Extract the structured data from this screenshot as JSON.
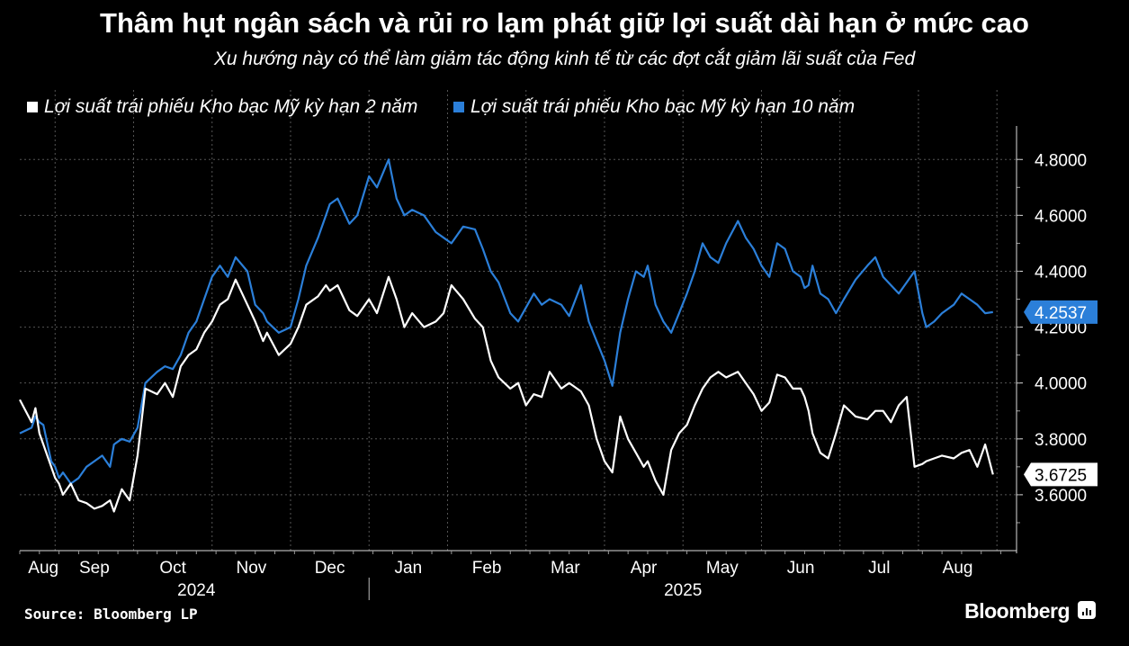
{
  "title": "Thâm hụt ngân sách và rủi ro lạm phát giữ lợi suất dài hạn ở mức cao",
  "subtitle": "Xu hướng này có thể làm giảm tác động kinh tế từ các đợt cắt giảm lãi suất của Fed",
  "source": "Source: Bloomberg LP",
  "brand": "Bloomberg",
  "colors": {
    "background": "#000000",
    "series_2y": "#ffffff",
    "series_10y": "#2b7fd9",
    "gridline": "#555555"
  },
  "chart_data": {
    "type": "line",
    "title": "Thâm hụt ngân sách và rủi ro lạm phát giữ lợi suất dài hạn ở mức cao",
    "ylim": [
      3.4,
      4.92
    ],
    "yticks": [
      3.6,
      3.8,
      4.0,
      4.2,
      4.4,
      4.6,
      4.8
    ],
    "ytick_labels": [
      "3.6000",
      "3.8000",
      "4.0000",
      "4.2000",
      "4.4000",
      "4.6000",
      "4.8000"
    ],
    "x_unit": "months since 2024-08-01",
    "xlim": [
      0.55,
      13.25
    ],
    "month_ticks": [
      {
        "label": "Aug",
        "x": 0.85
      },
      {
        "label": "Sep",
        "x": 1.5
      },
      {
        "label": "Oct",
        "x": 2.5
      },
      {
        "label": "Nov",
        "x": 3.5
      },
      {
        "label": "Dec",
        "x": 4.5
      },
      {
        "label": "Jan",
        "x": 5.5
      },
      {
        "label": "Feb",
        "x": 6.5
      },
      {
        "label": "Mar",
        "x": 7.5
      },
      {
        "label": "Apr",
        "x": 8.5
      },
      {
        "label": "May",
        "x": 9.5
      },
      {
        "label": "Jun",
        "x": 10.5
      },
      {
        "label": "Jul",
        "x": 11.5
      },
      {
        "label": "Aug",
        "x": 12.5
      }
    ],
    "year_labels": [
      {
        "label": "2024",
        "x": 2.8
      },
      {
        "label": "2025",
        "x": 9.0
      }
    ],
    "year_divider_x": 5.0,
    "legend": [
      "Lợi suất trái phiếu Kho bạc Mỹ kỳ hạn 2 năm",
      "Lợi suất trái phiếu Kho bạc Mỹ kỳ hạn 10 năm"
    ],
    "series": [
      {
        "name": "Lợi suất trái phiếu Kho bạc Mỹ kỳ hạn 2 năm",
        "last_label": "3.6725",
        "x": [
          0.55,
          0.7,
          0.75,
          0.8,
          0.85,
          0.95,
          1.0,
          1.05,
          1.1,
          1.2,
          1.3,
          1.4,
          1.5,
          1.6,
          1.7,
          1.75,
          1.85,
          1.95,
          2.05,
          2.15,
          2.3,
          2.4,
          2.5,
          2.6,
          2.7,
          2.8,
          2.9,
          3.0,
          3.1,
          3.2,
          3.3,
          3.45,
          3.55,
          3.65,
          3.7,
          3.85,
          4.0,
          4.1,
          4.2,
          4.35,
          4.45,
          4.5,
          4.6,
          4.75,
          4.85,
          5.0,
          5.1,
          5.25,
          5.35,
          5.45,
          5.55,
          5.7,
          5.85,
          5.95,
          6.05,
          6.2,
          6.35,
          6.45,
          6.55,
          6.65,
          6.8,
          6.9,
          7.0,
          7.1,
          7.2,
          7.3,
          7.45,
          7.55,
          7.7,
          7.8,
          7.9,
          8.0,
          8.1,
          8.2,
          8.3,
          8.4,
          8.5,
          8.55,
          8.65,
          8.75,
          8.85,
          8.95,
          9.05,
          9.15,
          9.25,
          9.35,
          9.45,
          9.55,
          9.7,
          9.8,
          9.9,
          10.0,
          10.1,
          10.2,
          10.3,
          10.4,
          10.5,
          10.55,
          10.6,
          10.65,
          10.75,
          10.85,
          10.95,
          11.05,
          11.2,
          11.35,
          11.45,
          11.55,
          11.65,
          11.75,
          11.85,
          11.95,
          12.05,
          12.1,
          12.2,
          12.3,
          12.45,
          12.55,
          12.65,
          12.75,
          12.85,
          12.95
        ],
        "y": [
          3.94,
          3.86,
          3.91,
          3.82,
          3.78,
          3.7,
          3.66,
          3.64,
          3.6,
          3.64,
          3.58,
          3.57,
          3.55,
          3.56,
          3.58,
          3.54,
          3.62,
          3.58,
          3.74,
          3.98,
          3.96,
          4.0,
          3.95,
          4.06,
          4.1,
          4.12,
          4.18,
          4.22,
          4.28,
          4.3,
          4.37,
          4.28,
          4.22,
          4.15,
          4.18,
          4.1,
          4.14,
          4.2,
          4.28,
          4.31,
          4.35,
          4.33,
          4.35,
          4.26,
          4.24,
          4.3,
          4.25,
          4.38,
          4.3,
          4.2,
          4.25,
          4.2,
          4.22,
          4.25,
          4.35,
          4.3,
          4.23,
          4.2,
          4.08,
          4.02,
          3.98,
          4.0,
          3.92,
          3.96,
          3.95,
          4.04,
          3.98,
          4.0,
          3.97,
          3.92,
          3.8,
          3.72,
          3.68,
          3.88,
          3.8,
          3.75,
          3.7,
          3.72,
          3.65,
          3.6,
          3.76,
          3.82,
          3.85,
          3.92,
          3.98,
          4.02,
          4.04,
          4.02,
          4.04,
          4.0,
          3.96,
          3.9,
          3.93,
          4.03,
          4.02,
          3.98,
          3.98,
          3.95,
          3.9,
          3.82,
          3.75,
          3.73,
          3.82,
          3.92,
          3.88,
          3.87,
          3.9,
          3.9,
          3.86,
          3.92,
          3.95,
          3.7,
          3.71,
          3.72,
          3.73,
          3.74,
          3.73,
          3.75,
          3.76,
          3.7,
          3.78,
          3.6725
        ]
      },
      {
        "name": "Lợi suất trái phiếu Kho bạc Mỹ kỳ hạn 10 năm",
        "last_label": "4.2537",
        "x": [
          0.55,
          0.7,
          0.75,
          0.8,
          0.85,
          0.95,
          1.0,
          1.05,
          1.1,
          1.2,
          1.3,
          1.4,
          1.5,
          1.6,
          1.7,
          1.75,
          1.85,
          1.95,
          2.05,
          2.15,
          2.3,
          2.4,
          2.5,
          2.6,
          2.7,
          2.8,
          2.9,
          3.0,
          3.1,
          3.2,
          3.3,
          3.45,
          3.55,
          3.65,
          3.7,
          3.85,
          4.0,
          4.1,
          4.2,
          4.35,
          4.45,
          4.5,
          4.6,
          4.75,
          4.85,
          5.0,
          5.1,
          5.25,
          5.35,
          5.45,
          5.55,
          5.7,
          5.85,
          5.95,
          6.05,
          6.2,
          6.35,
          6.45,
          6.55,
          6.65,
          6.8,
          6.9,
          7.0,
          7.1,
          7.2,
          7.3,
          7.45,
          7.55,
          7.7,
          7.8,
          7.9,
          8.0,
          8.1,
          8.2,
          8.3,
          8.4,
          8.5,
          8.55,
          8.65,
          8.75,
          8.85,
          8.95,
          9.05,
          9.15,
          9.25,
          9.35,
          9.45,
          9.55,
          9.7,
          9.8,
          9.9,
          10.0,
          10.1,
          10.2,
          10.3,
          10.4,
          10.5,
          10.55,
          10.6,
          10.65,
          10.75,
          10.85,
          10.95,
          11.05,
          11.2,
          11.35,
          11.45,
          11.55,
          11.65,
          11.75,
          11.85,
          11.95,
          12.05,
          12.1,
          12.2,
          12.3,
          12.45,
          12.55,
          12.65,
          12.75,
          12.85,
          12.95
        ],
        "y": [
          3.82,
          3.84,
          3.88,
          3.86,
          3.85,
          3.72,
          3.7,
          3.66,
          3.68,
          3.64,
          3.66,
          3.7,
          3.72,
          3.74,
          3.7,
          3.78,
          3.8,
          3.79,
          3.84,
          4.0,
          4.04,
          4.06,
          4.05,
          4.1,
          4.18,
          4.22,
          4.3,
          4.38,
          4.42,
          4.38,
          4.45,
          4.4,
          4.28,
          4.25,
          4.22,
          4.18,
          4.2,
          4.3,
          4.42,
          4.52,
          4.6,
          4.64,
          4.66,
          4.57,
          4.6,
          4.74,
          4.7,
          4.8,
          4.66,
          4.6,
          4.62,
          4.6,
          4.54,
          4.52,
          4.5,
          4.56,
          4.55,
          4.48,
          4.4,
          4.36,
          4.25,
          4.22,
          4.27,
          4.32,
          4.28,
          4.3,
          4.28,
          4.24,
          4.35,
          4.22,
          4.15,
          4.08,
          3.99,
          4.18,
          4.3,
          4.4,
          4.38,
          4.42,
          4.28,
          4.22,
          4.18,
          4.25,
          4.32,
          4.4,
          4.5,
          4.45,
          4.43,
          4.5,
          4.58,
          4.52,
          4.48,
          4.42,
          4.38,
          4.5,
          4.48,
          4.4,
          4.38,
          4.34,
          4.35,
          4.42,
          4.32,
          4.3,
          4.25,
          4.3,
          4.37,
          4.42,
          4.45,
          4.38,
          4.35,
          4.32,
          4.36,
          4.4,
          4.25,
          4.2,
          4.22,
          4.25,
          4.28,
          4.32,
          4.3,
          4.28,
          4.25,
          4.2537
        ]
      }
    ]
  }
}
